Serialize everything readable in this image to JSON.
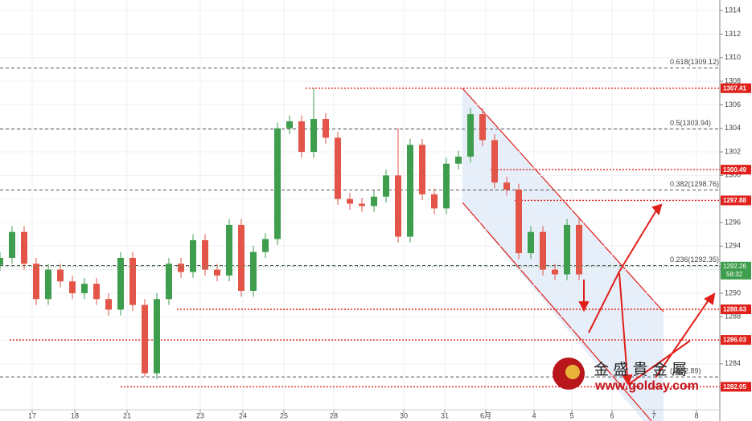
{
  "chart_data": {
    "type": "candlestick",
    "x": [
      0,
      3,
      6,
      9,
      12,
      15,
      18,
      21,
      24,
      27,
      30,
      33,
      36,
      39,
      42,
      45,
      48,
      51,
      54,
      57,
      60,
      63,
      66,
      69,
      72,
      75,
      78,
      81,
      84,
      87,
      90,
      93,
      96,
      99,
      102,
      105,
      108,
      111,
      114,
      117,
      120,
      123,
      126,
      129,
      132,
      135,
      138,
      141,
      144
    ],
    "open": [
      1292.4,
      1293.0,
      1295.2,
      1292.5,
      1289.5,
      1292.0,
      1291.0,
      1290.0,
      1290.8,
      1289.5,
      1288.6,
      1293.0,
      1289.0,
      1283.2,
      1289.5,
      1292.5,
      1291.8,
      1294.5,
      1292.0,
      1291.5,
      1295.8,
      1290.2,
      1293.5,
      1294.6,
      1304.0,
      1304.6,
      1302.0,
      1304.8,
      1303.2,
      1298.0,
      1297.6,
      1297.4,
      1298.2,
      1300.0,
      1294.8,
      1302.6,
      1298.4,
      1297.2,
      1301.0,
      1301.6,
      1305.2,
      1303.0,
      1299.4,
      1298.8,
      1293.4,
      1295.2,
      1292.0,
      1291.6,
      1295.8
    ],
    "high": [
      1293.5,
      1295.7,
      1295.7,
      1293.0,
      1292.5,
      1292.5,
      1291.5,
      1291.3,
      1291.3,
      1290.0,
      1293.5,
      1293.5,
      1289.5,
      1290.0,
      1293.0,
      1293.0,
      1295.0,
      1295.0,
      1292.5,
      1296.3,
      1296.3,
      1294.0,
      1295.1,
      1304.5,
      1305.1,
      1305.1,
      1307.4,
      1305.3,
      1303.7,
      1298.5,
      1298.1,
      1298.7,
      1300.5,
      1304.0,
      1303.1,
      1303.1,
      1298.9,
      1301.5,
      1302.1,
      1305.7,
      1305.7,
      1303.5,
      1299.9,
      1299.3,
      1295.7,
      1295.7,
      1292.5,
      1296.3,
      1296.3
    ],
    "low": [
      1291.9,
      1292.5,
      1292.0,
      1289.0,
      1289.0,
      1290.5,
      1289.5,
      1289.5,
      1289.0,
      1288.1,
      1288.1,
      1288.5,
      1282.9,
      1282.7,
      1289.0,
      1291.3,
      1291.3,
      1291.5,
      1291.0,
      1291.0,
      1289.7,
      1289.7,
      1293.0,
      1294.1,
      1303.5,
      1301.5,
      1301.5,
      1302.7,
      1297.5,
      1297.1,
      1296.9,
      1296.9,
      1297.7,
      1294.3,
      1294.3,
      1297.9,
      1296.7,
      1296.7,
      1300.5,
      1301.1,
      1302.5,
      1298.9,
      1298.3,
      1292.9,
      1292.9,
      1291.5,
      1291.1,
      1291.1,
      1291.1
    ],
    "close": [
      1293.0,
      1295.2,
      1292.5,
      1289.5,
      1292.0,
      1291.0,
      1290.0,
      1290.8,
      1289.5,
      1288.6,
      1293.0,
      1289.0,
      1283.2,
      1289.5,
      1292.5,
      1291.8,
      1294.5,
      1292.0,
      1291.5,
      1295.8,
      1290.2,
      1293.5,
      1294.6,
      1304.0,
      1304.6,
      1302.0,
      1304.8,
      1303.2,
      1298.0,
      1297.6,
      1297.4,
      1298.2,
      1300.0,
      1294.8,
      1302.6,
      1298.4,
      1297.2,
      1301.0,
      1301.6,
      1305.2,
      1303.0,
      1299.4,
      1298.8,
      1293.4,
      1295.2,
      1292.0,
      1291.6,
      1295.8,
      1291.6
    ],
    "up_color": "#3f9e4d",
    "down_color": "#e25548",
    "xlim": [
      0,
      179
    ],
    "xticks": [
      {
        "value": 8,
        "label": "17"
      },
      {
        "value": 18.6,
        "label": "18"
      },
      {
        "value": 31.6,
        "label": "21"
      },
      {
        "value": 49.8,
        "label": "23"
      },
      {
        "value": 60.4,
        "label": "24"
      },
      {
        "value": 70.6,
        "label": "25"
      },
      {
        "value": 83,
        "label": "28"
      },
      {
        "value": 100.4,
        "label": "30"
      },
      {
        "value": 110.6,
        "label": "31"
      },
      {
        "value": 120.8,
        "label": "6月"
      },
      {
        "value": 132.8,
        "label": "4"
      },
      {
        "value": 142.2,
        "label": "5"
      },
      {
        "value": 152.2,
        "label": "6"
      },
      {
        "value": 162.6,
        "label": "7"
      },
      {
        "value": 173.2,
        "label": "8"
      }
    ],
    "ylim": [
      1280.1,
      1314.9
    ],
    "yticks": [
      1284,
      1286,
      1288,
      1290,
      1292,
      1294,
      1296,
      1298,
      1300,
      1302,
      1304,
      1306,
      1308,
      1310,
      1312,
      1314
    ],
    "grid": true,
    "fib_levels": [
      {
        "value": 1309.12,
        "label": "0.618(1309.12)"
      },
      {
        "value": 1303.94,
        "label": "0.5(1303.94)"
      },
      {
        "value": 1298.76,
        "label": "0.382(1298.76)"
      },
      {
        "value": 1292.35,
        "label": "0.236(1292.35)"
      },
      {
        "value": 1282.89,
        "label": "(1282.89)"
      }
    ],
    "levels": [
      {
        "value": 1307.41,
        "from": 76
      },
      {
        "value": 1300.49,
        "from": 122
      },
      {
        "value": 1297.88,
        "from": 128
      },
      {
        "value": 1288.63,
        "from": 44
      },
      {
        "value": 1286.03,
        "from": 2.4
      },
      {
        "value": 1282.05,
        "from": 30
      }
    ],
    "level_color": "#e0201a",
    "last": {
      "value": 1292.26,
      "timer": "58:32"
    },
    "watermark": {
      "name": "金 盛 貴 金 屬",
      "url": "www.golday.com"
    }
  }
}
